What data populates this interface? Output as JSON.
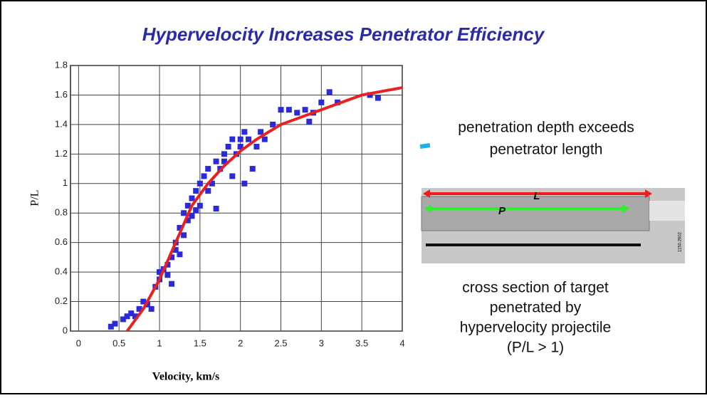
{
  "slide_title": "Hypervelocity Increases Penetrator Efficiency",
  "chart_data": {
    "type": "scatter",
    "x_label": "Velocity, km/s",
    "y_label": "P/L",
    "xlim": [
      -0.1,
      4
    ],
    "ylim": [
      0,
      1.8
    ],
    "xticks": [
      0,
      0.5,
      1,
      1.5,
      2,
      2.5,
      3,
      3.5,
      4
    ],
    "yticks": [
      0,
      0.2,
      0.4,
      0.6,
      0.8,
      1,
      1.2,
      1.4,
      1.6,
      1.8
    ],
    "grid": true,
    "series": [
      {
        "color": "#2a2ad8",
        "marker": "square",
        "x": [
          0.4,
          0.45,
          0.55,
          0.6,
          0.65,
          0.7,
          0.75,
          0.8,
          0.85,
          0.9,
          0.95,
          1.0,
          1.0,
          1.05,
          1.1,
          1.1,
          1.15,
          1.15,
          1.2,
          1.2,
          1.25,
          1.25,
          1.3,
          1.3,
          1.35,
          1.35,
          1.4,
          1.4,
          1.45,
          1.45,
          1.5,
          1.5,
          1.55,
          1.6,
          1.6,
          1.65,
          1.7,
          1.7,
          1.75,
          1.8,
          1.8,
          1.85,
          1.9,
          1.9,
          1.95,
          2.0,
          2.0,
          2.05,
          2.05,
          2.1,
          2.15,
          2.2,
          2.25,
          2.3,
          2.4,
          2.5,
          2.6,
          2.7,
          2.8,
          2.85,
          2.9,
          3.0,
          3.1,
          3.2,
          3.6,
          3.7
        ],
        "values": [
          0.03,
          0.05,
          0.08,
          0.1,
          0.12,
          0.1,
          0.15,
          0.2,
          0.18,
          0.15,
          0.3,
          0.35,
          0.4,
          0.42,
          0.38,
          0.45,
          0.32,
          0.5,
          0.55,
          0.6,
          0.52,
          0.7,
          0.65,
          0.8,
          0.75,
          0.85,
          0.9,
          0.78,
          0.95,
          0.82,
          1.0,
          0.85,
          1.05,
          0.95,
          1.1,
          1.0,
          0.83,
          1.15,
          1.1,
          1.2,
          1.15,
          1.25,
          1.3,
          1.05,
          1.2,
          1.3,
          1.25,
          1.0,
          1.35,
          1.3,
          1.1,
          1.25,
          1.35,
          1.3,
          1.4,
          1.5,
          1.5,
          1.48,
          1.5,
          1.42,
          1.48,
          1.55,
          1.62,
          1.55,
          1.6,
          1.58
        ]
      },
      {
        "color": "#e82020",
        "line": true,
        "x": [
          0.6,
          0.8,
          1.0,
          1.2,
          1.4,
          1.6,
          1.8,
          2.0,
          2.2,
          2.5,
          3.0,
          3.5,
          4.0
        ],
        "values": [
          0,
          0.15,
          0.35,
          0.6,
          0.85,
          1.0,
          1.12,
          1.22,
          1.3,
          1.4,
          1.5,
          1.6,
          1.65
        ]
      }
    ]
  },
  "annotation_top": [
    "penetration depth exceeds",
    "penetrator length"
  ],
  "image_labels": {
    "long": "L",
    "short": "P",
    "code": "1150.2602"
  },
  "caption": [
    "cross section of target",
    "penetrated by",
    "hypervelocity projectile",
    "(P/L > 1)"
  ]
}
